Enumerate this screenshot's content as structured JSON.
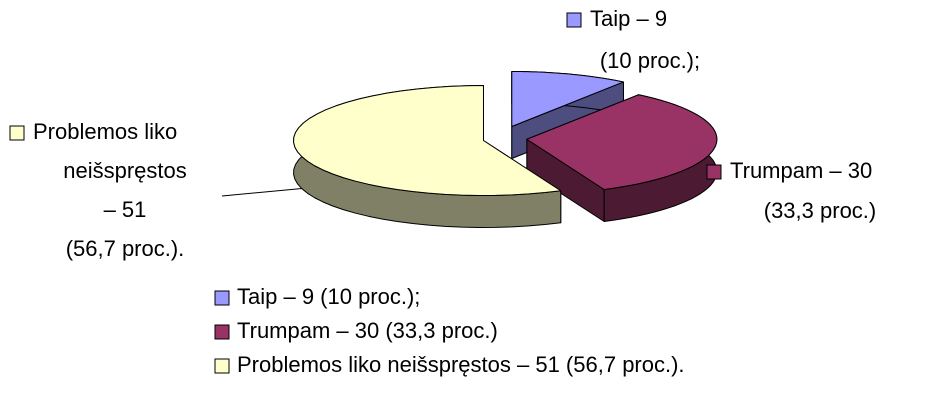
{
  "chart_data": {
    "type": "pie3d",
    "categories": [
      "Taip – 9 (10 proc.);",
      "Trumpam – 30 (33,3 proc.)",
      "Problemos liko neišspręstos – 51 (56,7 proc.)."
    ],
    "values": [
      9,
      30,
      51
    ],
    "value_labels": [
      [
        "Taip – 9",
        "(10 proc.);"
      ],
      [
        "Trumpam – 30",
        "(33,3 proc.)"
      ],
      [
        "Problemos liko",
        "neišspręstos",
        "– 51",
        "(56,7 proc.)."
      ]
    ],
    "colors": [
      "#9999ff",
      "#993366",
      "#ffffcc"
    ],
    "side_colors": [
      "#4d4d80",
      "#4d1a33",
      "#808066"
    ],
    "legend": "bottom"
  }
}
